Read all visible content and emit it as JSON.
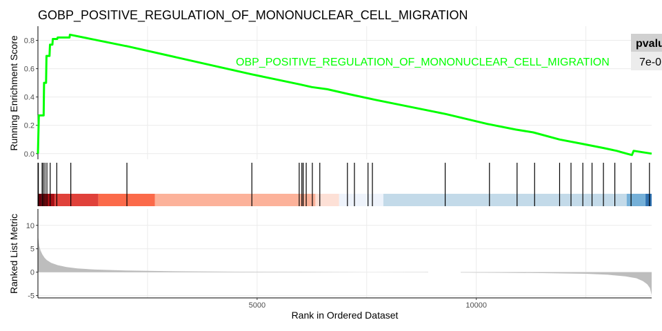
{
  "chart_data": {
    "type": "line",
    "title": "GOBP_POSITIVE_REGULATION_OF_MONONUCLEAR_CELL_MIGRATION",
    "annotation_label": "OBP_POSITIVE_REGULATION_OF_MONONUCLEAR_CELL_MIGRATION",
    "line_color": "#00ff00",
    "table": {
      "header": "pvalu",
      "value": "7e-0"
    },
    "xlabel": "Rank in Ordered Dataset",
    "xlim": [
      0,
      14000
    ],
    "x_ticks": [
      5000,
      10000
    ],
    "x_tick_labels": [
      "5000",
      "10000"
    ],
    "es_panel": {
      "ylabel": "Running Enrichment Score",
      "ylim": [
        -0.04,
        0.9
      ],
      "y_ticks": [
        0.0,
        0.2,
        0.4,
        0.6,
        0.8
      ],
      "y_tick_labels": [
        "0.0",
        "0.2",
        "0.4",
        "0.6",
        "0.8"
      ],
      "points": [
        [
          0,
          0.0
        ],
        [
          20,
          0.27
        ],
        [
          130,
          0.27
        ],
        [
          140,
          0.5
        ],
        [
          185,
          0.5
        ],
        [
          195,
          0.69
        ],
        [
          265,
          0.69
        ],
        [
          275,
          0.77
        ],
        [
          330,
          0.77
        ],
        [
          340,
          0.81
        ],
        [
          440,
          0.81
        ],
        [
          450,
          0.82
        ],
        [
          720,
          0.82
        ],
        [
          730,
          0.84
        ],
        [
          2000,
          0.76
        ],
        [
          2010,
          0.76
        ],
        [
          4880,
          0.56
        ],
        [
          5960,
          0.49
        ],
        [
          6250,
          0.47
        ],
        [
          6600,
          0.455
        ],
        [
          7100,
          0.42
        ],
        [
          7700,
          0.38
        ],
        [
          9300,
          0.28
        ],
        [
          10250,
          0.21
        ],
        [
          10900,
          0.17
        ],
        [
          11300,
          0.15
        ],
        [
          11900,
          0.1
        ],
        [
          12400,
          0.07
        ],
        [
          12900,
          0.04
        ],
        [
          13200,
          0.02
        ],
        [
          13430,
          0.0
        ],
        [
          13550,
          -0.01
        ],
        [
          13590,
          0.02
        ],
        [
          14000,
          0.0
        ]
      ]
    },
    "hits": [
      10,
      95,
      120,
      160,
      205,
      280,
      430,
      750,
      2030,
      4880,
      5960,
      6020,
      6050,
      6120,
      6260,
      6430,
      7060,
      7220,
      7530,
      7630,
      9290,
      10300,
      10930,
      11330,
      11900,
      12160,
      12430,
      12640,
      12900,
      13160,
      13530,
      13950
    ],
    "rank_bar": {
      "segments": [
        {
          "from": 0,
          "to": 80,
          "color": "#67000d"
        },
        {
          "from": 80,
          "to": 380,
          "color": "#a50f15"
        },
        {
          "from": 380,
          "to": 1380,
          "color": "#e0413a"
        },
        {
          "from": 1380,
          "to": 2670,
          "color": "#fb6a4a"
        },
        {
          "from": 2670,
          "to": 6330,
          "color": "#fcb29a"
        },
        {
          "from": 6330,
          "to": 6870,
          "color": "#fde0d6"
        },
        {
          "from": 6870,
          "to": 7880,
          "color": "#eef3fb"
        },
        {
          "from": 7880,
          "to": 13430,
          "color": "#c3dae9"
        },
        {
          "from": 13430,
          "to": 13860,
          "color": "#75b0d8"
        },
        {
          "from": 13860,
          "to": 14000,
          "color": "#2f72b2"
        }
      ]
    },
    "metric_panel": {
      "ylabel": "Ranked List Metric",
      "ylim": [
        -5.5,
        13.5
      ],
      "y_ticks": [
        -5,
        0,
        5,
        10
      ],
      "y_tick_labels": [
        "-5",
        "0",
        "5",
        "10"
      ],
      "points": [
        [
          0,
          8.3
        ],
        [
          10,
          7.2
        ],
        [
          30,
          5.6
        ],
        [
          60,
          4.6
        ],
        [
          100,
          3.8
        ],
        [
          150,
          3.1
        ],
        [
          200,
          2.6
        ],
        [
          300,
          2.0
        ],
        [
          450,
          1.5
        ],
        [
          650,
          1.1
        ],
        [
          900,
          0.8
        ],
        [
          1300,
          0.55
        ],
        [
          2000,
          0.35
        ],
        [
          3000,
          0.2
        ],
        [
          4500,
          0.1
        ],
        [
          6000,
          0.05
        ],
        [
          7500,
          0.0
        ],
        [
          9000,
          -0.05
        ],
        [
          10500,
          -0.12
        ],
        [
          11500,
          -0.2
        ],
        [
          12500,
          -0.35
        ],
        [
          13000,
          -0.55
        ],
        [
          13400,
          -0.9
        ],
        [
          13650,
          -1.3
        ],
        [
          13800,
          -1.9
        ],
        [
          13900,
          -2.6
        ],
        [
          13960,
          -3.4
        ],
        [
          14000,
          -4.9
        ]
      ]
    }
  }
}
